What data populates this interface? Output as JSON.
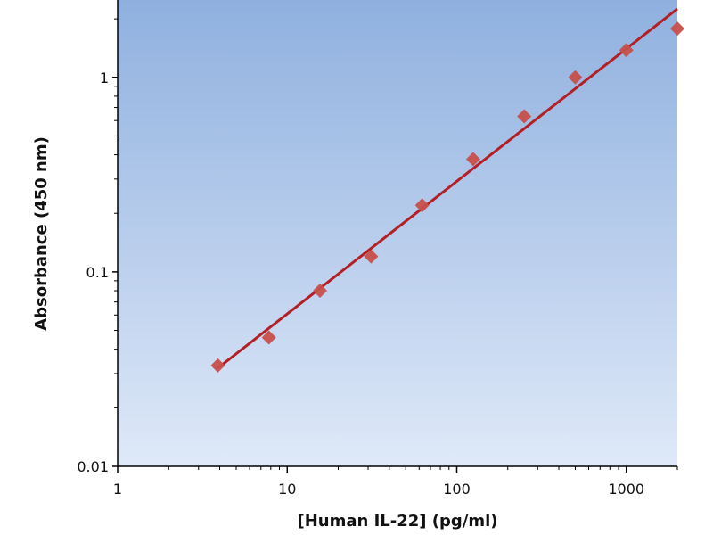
{
  "chart_data": {
    "type": "scatter",
    "title": "",
    "xlabel": "[Human IL-22] (pg/ml)",
    "ylabel": "Absorbance (450 nm)",
    "x_scale": "log",
    "y_scale": "log",
    "xlim": [
      1,
      2000
    ],
    "ylim": [
      0.01,
      2.5
    ],
    "x_ticks": [
      "1",
      "10",
      "100",
      "1000"
    ],
    "y_ticks": [
      "0.01",
      "0.1",
      "1"
    ],
    "grid": false,
    "legend": "none",
    "series": [
      {
        "x": [
          3.9,
          7.8,
          15.6,
          31.25,
          62.5,
          125,
          250,
          500,
          1000,
          2000
        ],
        "y": [
          0.033,
          0.046,
          0.08,
          0.12,
          0.22,
          0.38,
          0.63,
          1.0,
          1.38,
          1.78
        ]
      }
    ],
    "fit_line": {
      "x": [
        3.9,
        2000
      ],
      "y": [
        0.032,
        2.25
      ]
    },
    "colors": {
      "background_top": "#8fb0df",
      "background_bottom": "#dfe9f8",
      "marker": "#c74f4b",
      "line": "#b21f25",
      "axis": "#000000"
    }
  }
}
